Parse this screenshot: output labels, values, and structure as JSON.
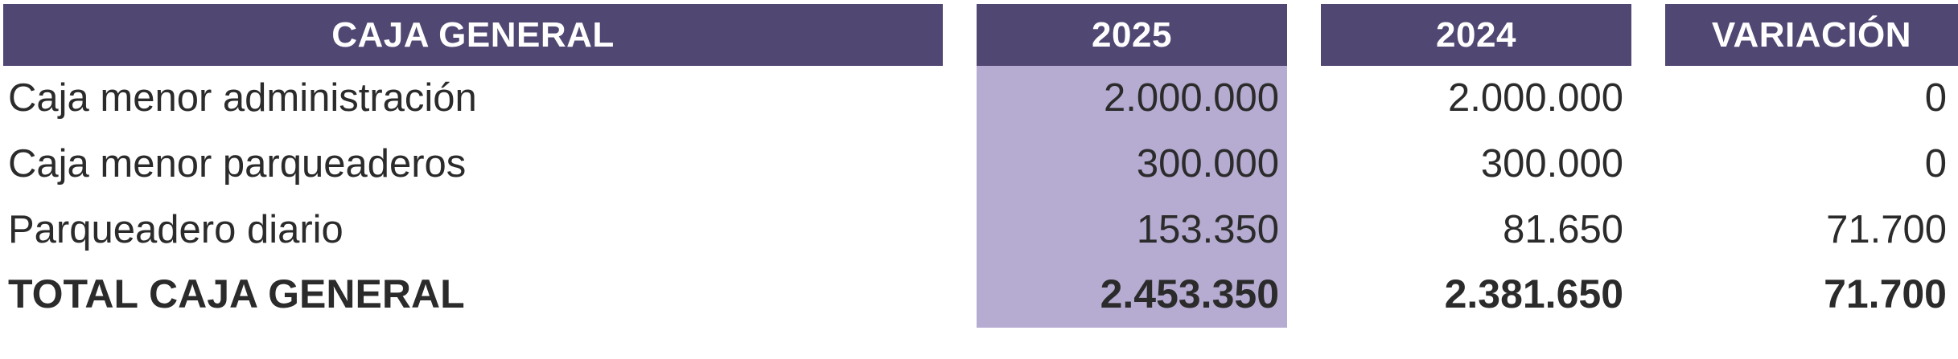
{
  "table": {
    "headers": {
      "label": "CAJA GENERAL",
      "y2025": "2025",
      "y2024": "2024",
      "variation": "VARIACIÓN"
    },
    "rows": [
      {
        "label": "Caja menor administración",
        "y2025": "2.000.000",
        "y2024": "2.000.000",
        "variation": "0"
      },
      {
        "label": "Caja menor parqueaderos",
        "y2025": "300.000",
        "y2024": "300.000",
        "variation": "0"
      },
      {
        "label": "Parqueadero diario",
        "y2025": "153.350",
        "y2024": "81.650",
        "variation": "71.700"
      }
    ],
    "total": {
      "label": "TOTAL CAJA GENERAL",
      "y2025": "2.453.350",
      "y2024": "2.381.650",
      "variation": "71.700"
    }
  },
  "colors": {
    "header_bg": "#514773",
    "header_text": "#ffffff",
    "highlight_bg": "#b6abd1",
    "text": "#2b2b2b"
  }
}
